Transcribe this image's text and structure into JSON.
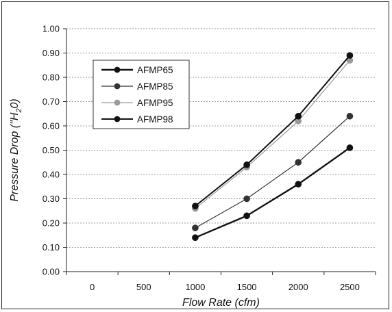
{
  "chart_data": {
    "type": "line",
    "title": "",
    "xlabel": "Flow Rate (cfm)",
    "ylabel": "Pressure Drop (\"H",
    "ylabel_sub": "2",
    "ylabel_tail": "0)",
    "x_ticks": [
      "0",
      "500",
      "1000",
      "1500",
      "2000",
      "2500"
    ],
    "y_ticks": [
      "0.00",
      "0.10",
      "0.20",
      "0.30",
      "0.40",
      "0.50",
      "0.60",
      "0.70",
      "0.80",
      "0.90",
      "1.00"
    ],
    "xlim": [
      -250,
      2750
    ],
    "ylim": [
      0,
      1.0
    ],
    "grid": "horizontal dashed",
    "legend_position": "top-left",
    "x": [
      1000,
      1500,
      2000,
      2500
    ],
    "series": [
      {
        "name": "AFMP65",
        "values": [
          0.14,
          0.23,
          0.36,
          0.51
        ],
        "color": "#111111",
        "width": 2.4
      },
      {
        "name": "AFMP85",
        "values": [
          0.18,
          0.3,
          0.45,
          0.64
        ],
        "color": "#333333",
        "width": 1.2
      },
      {
        "name": "AFMP95",
        "values": [
          0.26,
          0.43,
          0.62,
          0.87
        ],
        "color": "#9a9a9a",
        "width": 1.2
      },
      {
        "name": "AFMP98",
        "values": [
          0.27,
          0.44,
          0.64,
          0.89
        ],
        "color": "#111111",
        "width": 2.0
      }
    ]
  }
}
